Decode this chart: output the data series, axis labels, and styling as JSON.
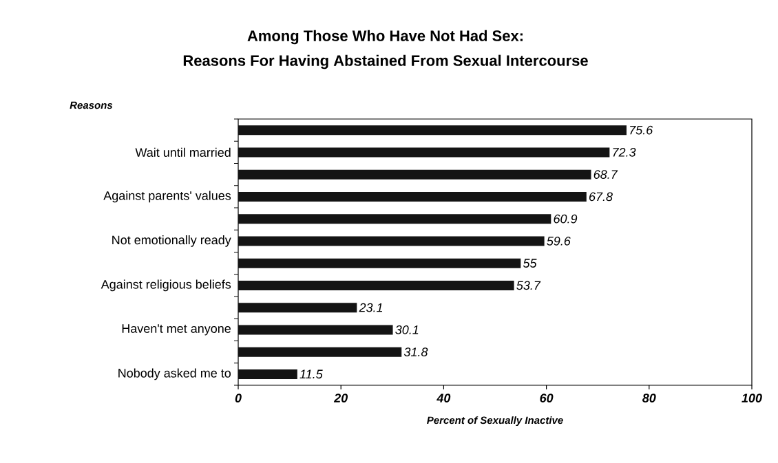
{
  "chart_data": {
    "type": "bar",
    "orientation": "horizontal",
    "title": "Among Those Who Have Not Had Sex:",
    "subtitle": "Reasons For Having Abstained From Sexual Intercourse",
    "ylabel": "Reasons",
    "xlabel": "Percent of Sexually Inactive",
    "categories": [
      null,
      "Wait until married",
      null,
      "Against parents' values",
      null,
      "Not emotionally ready",
      null,
      "Against religious beliefs",
      null,
      "Haven't met anyone",
      null,
      "Nobody asked me to"
    ],
    "values": [
      75.6,
      72.3,
      68.7,
      67.8,
      60.9,
      59.6,
      55,
      53.7,
      23.1,
      30.1,
      31.8,
      11.5
    ],
    "color": "#141414",
    "xlim": [
      0,
      100
    ],
    "xticks": [
      0,
      20,
      40,
      60,
      80,
      100
    ],
    "data_labels": true,
    "grid": false
  }
}
